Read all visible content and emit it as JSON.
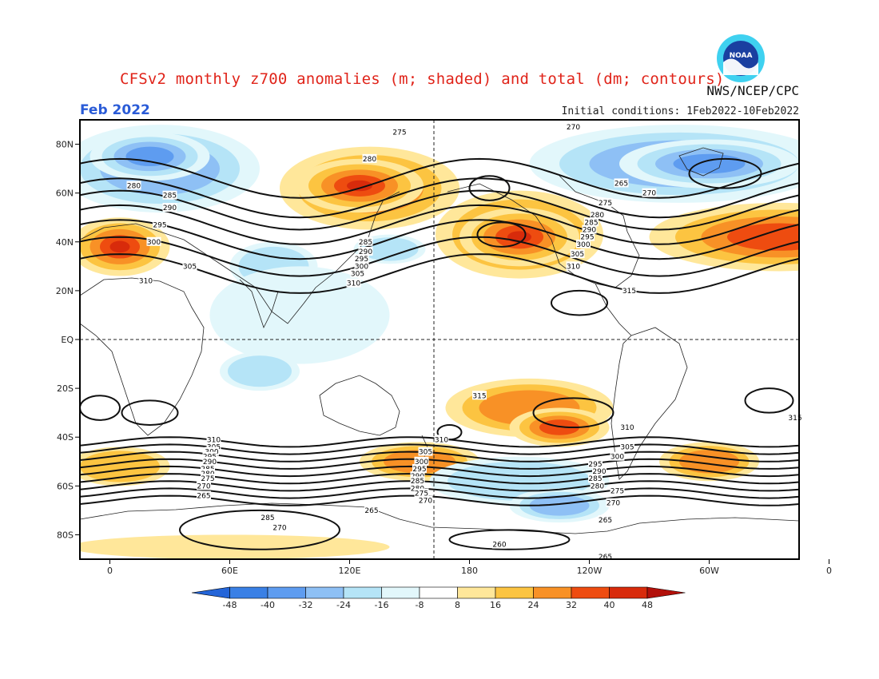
{
  "header": {
    "title": "CFSv2 monthly z700 anomalies (m; shaded) and total (dm; contours)",
    "org": "NWS/NCEP/CPC",
    "month": "Feb 2022",
    "initial_conditions": "Initial conditions: 1Feb2022-10Feb2022",
    "logo_text": "NOAA"
  },
  "map": {
    "lat_labels": [
      "80N",
      "60N",
      "40N",
      "20N",
      "EQ",
      "20S",
      "40S",
      "60S",
      "80S"
    ],
    "lon_labels": [
      "0",
      "60E",
      "120E",
      "180",
      "120W",
      "60W",
      "0"
    ],
    "contour_labels": [
      {
        "text": "275",
        "lon": 145,
        "lat": 85
      },
      {
        "text": "280",
        "lon": 130,
        "lat": 74
      },
      {
        "text": "270",
        "lon": 232,
        "lat": 87
      },
      {
        "text": "280",
        "lon": 12,
        "lat": 63
      },
      {
        "text": "285",
        "lon": 30,
        "lat": 59
      },
      {
        "text": "290",
        "lon": 30,
        "lat": 54
      },
      {
        "text": "295",
        "lon": 25,
        "lat": 47
      },
      {
        "text": "300",
        "lon": 22,
        "lat": 40
      },
      {
        "text": "305",
        "lon": 40,
        "lat": 30
      },
      {
        "text": "310",
        "lon": 18,
        "lat": 24
      },
      {
        "text": "285",
        "lon": 128,
        "lat": 40
      },
      {
        "text": "290",
        "lon": 128,
        "lat": 36
      },
      {
        "text": "295",
        "lon": 126,
        "lat": 33
      },
      {
        "text": "300",
        "lon": 126,
        "lat": 30
      },
      {
        "text": "305",
        "lon": 124,
        "lat": 27
      },
      {
        "text": "310",
        "lon": 122,
        "lat": 23
      },
      {
        "text": "265",
        "lon": 256,
        "lat": 64
      },
      {
        "text": "270",
        "lon": 270,
        "lat": 60
      },
      {
        "text": "275",
        "lon": 248,
        "lat": 56
      },
      {
        "text": "280",
        "lon": 244,
        "lat": 51
      },
      {
        "text": "285",
        "lon": 241,
        "lat": 48
      },
      {
        "text": "290",
        "lon": 240,
        "lat": 45
      },
      {
        "text": "295",
        "lon": 239,
        "lat": 42
      },
      {
        "text": "300",
        "lon": 237,
        "lat": 39
      },
      {
        "text": "305",
        "lon": 234,
        "lat": 35
      },
      {
        "text": "310",
        "lon": 232,
        "lat": 30
      },
      {
        "text": "315",
        "lon": 260,
        "lat": 20
      },
      {
        "text": "315",
        "lon": 185,
        "lat": -23
      },
      {
        "text": "315",
        "lon": 343,
        "lat": -32
      },
      {
        "text": "310",
        "lon": 259,
        "lat": -36
      },
      {
        "text": "305",
        "lon": 259,
        "lat": -44
      },
      {
        "text": "300",
        "lon": 254,
        "lat": -48
      },
      {
        "text": "295",
        "lon": 243,
        "lat": -51
      },
      {
        "text": "290",
        "lon": 245,
        "lat": -54
      },
      {
        "text": "285",
        "lon": 243,
        "lat": -57
      },
      {
        "text": "280",
        "lon": 244,
        "lat": -60
      },
      {
        "text": "275",
        "lon": 254,
        "lat": -62
      },
      {
        "text": "270",
        "lon": 252,
        "lat": -67
      },
      {
        "text": "265",
        "lon": 248,
        "lat": -74
      },
      {
        "text": "265",
        "lon": 248,
        "lat": -89
      },
      {
        "text": "310",
        "lon": 52,
        "lat": -41
      },
      {
        "text": "305",
        "lon": 52,
        "lat": -44
      },
      {
        "text": "300",
        "lon": 51,
        "lat": -46
      },
      {
        "text": "295",
        "lon": 50,
        "lat": -48
      },
      {
        "text": "290",
        "lon": 50,
        "lat": -50
      },
      {
        "text": "285",
        "lon": 49,
        "lat": -53
      },
      {
        "text": "280",
        "lon": 49,
        "lat": -55
      },
      {
        "text": "275",
        "lon": 49,
        "lat": -57
      },
      {
        "text": "270",
        "lon": 47,
        "lat": -60
      },
      {
        "text": "265",
        "lon": 47,
        "lat": -64
      },
      {
        "text": "310",
        "lon": 166,
        "lat": -41
      },
      {
        "text": "305",
        "lon": 158,
        "lat": -46
      },
      {
        "text": "300",
        "lon": 156,
        "lat": -50
      },
      {
        "text": "295",
        "lon": 155,
        "lat": -53
      },
      {
        "text": "290",
        "lon": 154,
        "lat": -56
      },
      {
        "text": "285",
        "lon": 154,
        "lat": -58
      },
      {
        "text": "280",
        "lon": 154,
        "lat": -61
      },
      {
        "text": "275",
        "lon": 156,
        "lat": -63
      },
      {
        "text": "270",
        "lon": 158,
        "lat": -66
      },
      {
        "text": "265",
        "lon": 131,
        "lat": -70
      },
      {
        "text": "285",
        "lon": 79,
        "lat": -73
      },
      {
        "text": "270",
        "lon": 85,
        "lat": -77
      },
      {
        "text": "260",
        "lon": 195,
        "lat": -84
      }
    ]
  },
  "colorbar": {
    "labels": [
      "-48",
      "-40",
      "-32",
      "-24",
      "-16",
      "-8",
      "8",
      "16",
      "24",
      "32",
      "40",
      "48"
    ],
    "colors": [
      "#2465d8",
      "#3a80e5",
      "#5e9cf0",
      "#8ec0f5",
      "#b5e4f7",
      "#e2f7fb",
      "#ffffff",
      "#ffe79a",
      "#fcc441",
      "#f89126",
      "#ee4c10",
      "#d82b0b",
      "#b2100a"
    ]
  },
  "anomaly_blobs": [
    {
      "sign": "neg",
      "lon": 25,
      "lat": 70,
      "rx": 50,
      "ry": 18,
      "level": 3
    },
    {
      "sign": "neg",
      "lon": 20,
      "lat": 75,
      "rx": 30,
      "ry": 10,
      "level": 4
    },
    {
      "sign": "neg",
      "lon": 285,
      "lat": 72,
      "rx": 75,
      "ry": 16,
      "level": 3
    },
    {
      "sign": "neg",
      "lon": 300,
      "lat": 72,
      "rx": 45,
      "ry": 10,
      "level": 4
    },
    {
      "sign": "pos",
      "lon": 130,
      "lat": 62,
      "rx": 45,
      "ry": 17,
      "level": 4
    },
    {
      "sign": "pos",
      "lon": 125,
      "lat": 63,
      "rx": 32,
      "ry": 11,
      "level": 5
    },
    {
      "sign": "pos",
      "lon": 205,
      "lat": 43,
      "rx": 42,
      "ry": 18,
      "level": 4
    },
    {
      "sign": "pos",
      "lon": 205,
      "lat": 42,
      "rx": 30,
      "ry": 12,
      "level": 5
    },
    {
      "sign": "pos",
      "lon": 335,
      "lat": 42,
      "rx": 65,
      "ry": 14,
      "level": 4
    },
    {
      "sign": "pos",
      "lon": 5,
      "lat": 38,
      "rx": 25,
      "ry": 12,
      "level": 5
    },
    {
      "sign": "neg",
      "lon": 82,
      "lat": 30,
      "rx": 22,
      "ry": 10,
      "level": 2
    },
    {
      "sign": "neg",
      "lon": 95,
      "lat": 10,
      "rx": 45,
      "ry": 20,
      "level": 1
    },
    {
      "sign": "neg",
      "lon": 75,
      "lat": -13,
      "rx": 20,
      "ry": 8,
      "level": 2
    },
    {
      "sign": "neg",
      "lon": 140,
      "lat": 37,
      "rx": 18,
      "ry": 6,
      "level": 2
    },
    {
      "sign": "pos",
      "lon": 210,
      "lat": -28,
      "rx": 42,
      "ry": 12,
      "level": 3
    },
    {
      "sign": "pos",
      "lon": 225,
      "lat": -36,
      "rx": 25,
      "ry": 8,
      "level": 4
    },
    {
      "sign": "pos",
      "lon": 5,
      "lat": -52,
      "rx": 25,
      "ry": 8,
      "level": 2
    },
    {
      "sign": "pos",
      "lon": 155,
      "lat": -50,
      "rx": 30,
      "ry": 8,
      "level": 3
    },
    {
      "sign": "neg",
      "lon": 205,
      "lat": -58,
      "rx": 45,
      "ry": 10,
      "level": 2
    },
    {
      "sign": "neg",
      "lon": 225,
      "lat": -68,
      "rx": 25,
      "ry": 7,
      "level": 3
    },
    {
      "sign": "pos",
      "lon": 300,
      "lat": -50,
      "rx": 25,
      "ry": 8,
      "level": 3
    },
    {
      "sign": "pos",
      "lon": 60,
      "lat": -85,
      "rx": 80,
      "ry": 5,
      "level": 1
    }
  ],
  "contour_lines_lat": [
    {
      "level": "270",
      "lat": -66
    },
    {
      "level": "275",
      "lat": -63
    },
    {
      "level": "280",
      "lat": -60
    },
    {
      "level": "285",
      "lat": -57
    },
    {
      "level": "290",
      "lat": -54
    },
    {
      "level": "295",
      "lat": -51
    },
    {
      "level": "300",
      "lat": -48
    },
    {
      "level": "305",
      "lat": -45
    },
    {
      "level": "310",
      "lat": -42
    }
  ],
  "north_contours": [
    {
      "level": "280",
      "lat": 66
    },
    {
      "level": "285",
      "lat": 58
    },
    {
      "level": "290",
      "lat": 53
    },
    {
      "level": "295",
      "lat": 47
    },
    {
      "level": "300",
      "lat": 41
    },
    {
      "level": "305",
      "lat": 34
    },
    {
      "level": "310",
      "lat": 27
    }
  ]
}
